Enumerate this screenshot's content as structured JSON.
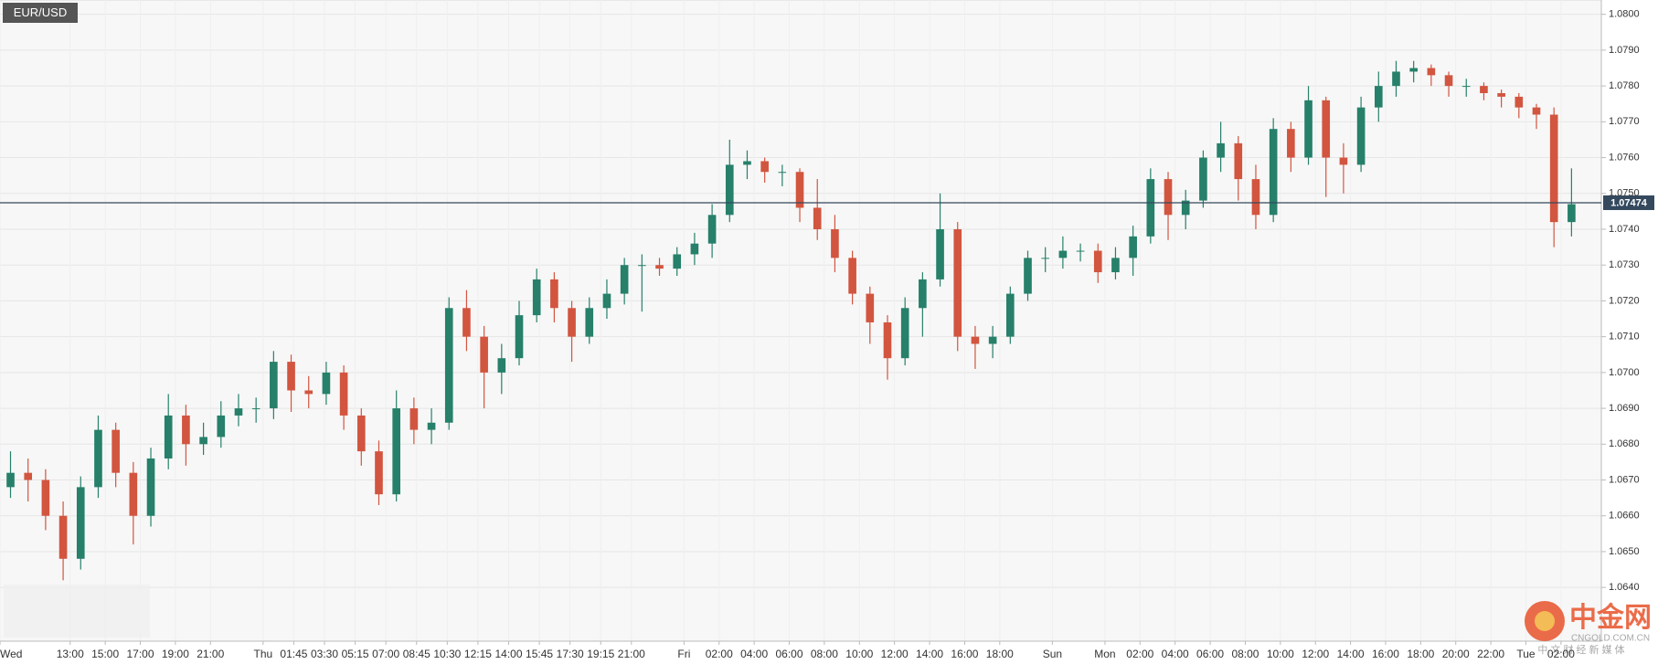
{
  "chart_data": {
    "type": "candlestick",
    "title": "EUR/USD",
    "x": [
      0,
      1,
      2,
      3,
      4,
      5,
      6,
      7,
      8,
      9,
      10,
      11,
      12,
      13,
      14,
      15,
      16,
      17,
      18,
      19,
      20,
      21,
      22,
      23,
      24,
      25,
      26,
      27,
      28,
      29,
      30,
      31,
      32,
      33,
      34,
      35,
      36,
      37,
      38,
      39,
      40,
      41,
      42,
      43,
      44,
      45,
      46,
      47,
      48,
      49,
      50,
      51,
      52,
      53,
      54,
      55,
      56,
      57,
      58,
      59,
      60,
      61,
      62,
      63,
      64,
      65,
      66,
      67,
      68,
      69,
      70,
      71,
      72,
      73,
      74,
      75,
      76,
      77,
      78,
      79,
      80,
      81,
      82,
      83,
      84,
      85,
      86,
      87,
      88,
      89
    ],
    "open": [
      1.0668,
      1.0672,
      1.067,
      1.066,
      1.0648,
      1.0668,
      1.0684,
      1.0672,
      1.066,
      1.0676,
      1.0688,
      1.068,
      1.0682,
      1.0688,
      1.069,
      1.069,
      1.0703,
      1.0695,
      1.0694,
      1.07,
      1.0688,
      1.0678,
      1.0666,
      1.069,
      1.0684,
      1.0686,
      1.0718,
      1.071,
      1.07,
      1.0704,
      1.0716,
      1.0726,
      1.0718,
      1.071,
      1.0718,
      1.0722,
      1.073,
      1.073,
      1.0729,
      1.0733,
      1.0736,
      1.0744,
      1.0758,
      1.0759,
      1.0756,
      1.0756,
      1.0746,
      1.074,
      1.0732,
      1.0722,
      1.0714,
      1.0704,
      1.0718,
      1.0726,
      1.074,
      1.071,
      1.0708,
      1.071,
      1.0722,
      1.0732,
      1.0732,
      1.0734,
      1.0734,
      1.0728,
      1.0732,
      1.0738,
      1.0754,
      1.0744,
      1.0748,
      1.076,
      1.0764,
      1.0754,
      1.0744,
      1.0768,
      1.076,
      1.0776,
      1.076,
      1.0758,
      1.0774,
      1.078,
      1.0784,
      1.0785,
      1.0783,
      1.078,
      1.078,
      1.0778,
      1.0777,
      1.0774,
      1.0772,
      1.0742
    ],
    "high": [
      1.0678,
      1.0676,
      1.0673,
      1.0664,
      1.0671,
      1.0688,
      1.0686,
      1.0675,
      1.0679,
      1.0694,
      1.0691,
      1.0686,
      1.0692,
      1.0694,
      1.0693,
      1.0706,
      1.0705,
      1.0699,
      1.0703,
      1.0702,
      1.069,
      1.0681,
      1.0695,
      1.0693,
      1.069,
      1.0721,
      1.0723,
      1.0713,
      1.0708,
      1.072,
      1.0729,
      1.0728,
      1.072,
      1.0721,
      1.0726,
      1.0732,
      1.0733,
      1.0732,
      1.0735,
      1.0739,
      1.0747,
      1.0765,
      1.0762,
      1.076,
      1.0758,
      1.0757,
      1.0754,
      1.0744,
      1.0734,
      1.0724,
      1.0716,
      1.0721,
      1.0728,
      1.075,
      1.0742,
      1.0713,
      1.0713,
      1.0724,
      1.0734,
      1.0735,
      1.0738,
      1.0736,
      1.0736,
      1.0735,
      1.0741,
      1.0757,
      1.0756,
      1.0751,
      1.0762,
      1.077,
      1.0766,
      1.0758,
      1.0771,
      1.077,
      1.078,
      1.0777,
      1.0764,
      1.0777,
      1.0784,
      1.0787,
      1.0787,
      1.0786,
      1.0784,
      1.0782,
      1.0781,
      1.0779,
      1.0778,
      1.0775,
      1.0774,
      1.0757
    ],
    "low": [
      1.0665,
      1.0664,
      1.0656,
      1.0642,
      1.0645,
      1.0665,
      1.0668,
      1.0652,
      1.0657,
      1.0673,
      1.0674,
      1.0677,
      1.0679,
      1.0685,
      1.0686,
      1.0687,
      1.0689,
      1.069,
      1.0691,
      1.0684,
      1.0674,
      1.0663,
      1.0664,
      1.068,
      1.068,
      1.0684,
      1.0706,
      1.069,
      1.0694,
      1.0702,
      1.0714,
      1.0714,
      1.0703,
      1.0708,
      1.0715,
      1.0719,
      1.0717,
      1.0727,
      1.0727,
      1.073,
      1.0732,
      1.0742,
      1.0754,
      1.0753,
      1.0752,
      1.0742,
      1.0737,
      1.0728,
      1.0719,
      1.0708,
      1.0698,
      1.0702,
      1.071,
      1.0724,
      1.0706,
      1.0701,
      1.0704,
      1.0708,
      1.072,
      1.0728,
      1.0729,
      1.0731,
      1.0725,
      1.0726,
      1.0727,
      1.0736,
      1.0737,
      1.074,
      1.0746,
      1.0756,
      1.0748,
      1.074,
      1.0742,
      1.0756,
      1.0758,
      1.0749,
      1.075,
      1.0756,
      1.077,
      1.0777,
      1.0781,
      1.078,
      1.0777,
      1.0777,
      1.0776,
      1.0774,
      1.0771,
      1.0768,
      1.0735,
      1.0738
    ],
    "close": [
      1.0672,
      1.067,
      1.066,
      1.0648,
      1.0668,
      1.0684,
      1.0672,
      1.066,
      1.0676,
      1.0688,
      1.068,
      1.0682,
      1.0688,
      1.069,
      1.069,
      1.0703,
      1.0695,
      1.0694,
      1.07,
      1.0688,
      1.0678,
      1.0666,
      1.069,
      1.0684,
      1.0686,
      1.0718,
      1.071,
      1.07,
      1.0704,
      1.0716,
      1.0726,
      1.0718,
      1.071,
      1.0718,
      1.0722,
      1.073,
      1.073,
      1.0729,
      1.0733,
      1.0736,
      1.0744,
      1.0758,
      1.0759,
      1.0756,
      1.0756,
      1.0746,
      1.074,
      1.0732,
      1.0722,
      1.0714,
      1.0704,
      1.0718,
      1.0726,
      1.074,
      1.071,
      1.0708,
      1.071,
      1.0722,
      1.0732,
      1.0732,
      1.0734,
      1.0734,
      1.0728,
      1.0732,
      1.0738,
      1.0754,
      1.0744,
      1.0748,
      1.076,
      1.0764,
      1.0754,
      1.0744,
      1.0768,
      1.076,
      1.0776,
      1.076,
      1.0758,
      1.0774,
      1.078,
      1.0784,
      1.0785,
      1.0783,
      1.078,
      1.078,
      1.0778,
      1.0777,
      1.0774,
      1.0772,
      1.0742,
      1.0747
    ],
    "up_color": "#26806a",
    "down_color": "#d2553f",
    "last_price": 1.07474,
    "last_price_color": "#34495e",
    "xlim": [
      -0.6,
      90.7
    ],
    "xticks": [
      {
        "value": -0.6,
        "label": "Wed"
      },
      {
        "value": 3.4,
        "label": "13:00"
      },
      {
        "value": 5.4,
        "label": "15:00"
      },
      {
        "value": 7.4,
        "label": "17:00"
      },
      {
        "value": 9.4,
        "label": "19:00"
      },
      {
        "value": 11.4,
        "label": "21:00"
      },
      {
        "value": 14.4,
        "label": "Thu"
      },
      {
        "value": 16.15,
        "label": "01:45"
      },
      {
        "value": 17.9,
        "label": "03:30"
      },
      {
        "value": 19.65,
        "label": "05:15"
      },
      {
        "value": 21.4,
        "label": "07:00"
      },
      {
        "value": 23.15,
        "label": "08:45"
      },
      {
        "value": 24.9,
        "label": "10:30"
      },
      {
        "value": 26.65,
        "label": "12:15"
      },
      {
        "value": 28.4,
        "label": "14:00"
      },
      {
        "value": 30.15,
        "label": "15:45"
      },
      {
        "value": 31.9,
        "label": "17:30"
      },
      {
        "value": 33.65,
        "label": "19:15"
      },
      {
        "value": 35.4,
        "label": "21:00"
      },
      {
        "value": 38.4,
        "label": "Fri"
      },
      {
        "value": 40.4,
        "label": "02:00"
      },
      {
        "value": 42.4,
        "label": "04:00"
      },
      {
        "value": 44.4,
        "label": "06:00"
      },
      {
        "value": 46.4,
        "label": "08:00"
      },
      {
        "value": 48.4,
        "label": "10:00"
      },
      {
        "value": 50.4,
        "label": "12:00"
      },
      {
        "value": 52.4,
        "label": "14:00"
      },
      {
        "value": 54.4,
        "label": "16:00"
      },
      {
        "value": 56.4,
        "label": "18:00"
      },
      {
        "value": 59.4,
        "label": "Sun"
      },
      {
        "value": 62.4,
        "label": "Mon"
      },
      {
        "value": 64.4,
        "label": "02:00"
      },
      {
        "value": 66.4,
        "label": "04:00"
      },
      {
        "value": 68.4,
        "label": "06:00"
      },
      {
        "value": 70.4,
        "label": "08:00"
      },
      {
        "value": 72.4,
        "label": "10:00"
      },
      {
        "value": 74.4,
        "label": "12:00"
      },
      {
        "value": 76.4,
        "label": "14:00"
      },
      {
        "value": 78.4,
        "label": "16:00"
      },
      {
        "value": 80.4,
        "label": "18:00"
      },
      {
        "value": 82.4,
        "label": "20:00"
      },
      {
        "value": 84.4,
        "label": "22:00"
      },
      {
        "value": 86.4,
        "label": "Tue"
      },
      {
        "value": 88.4,
        "label": "02:00"
      }
    ],
    "ylim": [
      1.0625,
      1.0804
    ],
    "yticks": [
      {
        "value": 1.064,
        "label": "1.0640"
      },
      {
        "value": 1.065,
        "label": "1.0650"
      },
      {
        "value": 1.066,
        "label": "1.0660"
      },
      {
        "value": 1.067,
        "label": "1.0670"
      },
      {
        "value": 1.068,
        "label": "1.0680"
      },
      {
        "value": 1.069,
        "label": "1.0690"
      },
      {
        "value": 1.07,
        "label": "1.0700"
      },
      {
        "value": 1.071,
        "label": "1.0710"
      },
      {
        "value": 1.072,
        "label": "1.0720"
      },
      {
        "value": 1.073,
        "label": "1.0730"
      },
      {
        "value": 1.074,
        "label": "1.0740"
      },
      {
        "value": 1.075,
        "label": "1.0750"
      },
      {
        "value": 1.076,
        "label": "1.0760"
      },
      {
        "value": 1.077,
        "label": "1.0770"
      },
      {
        "value": 1.078,
        "label": "1.0780"
      },
      {
        "value": 1.079,
        "label": "1.0790"
      },
      {
        "value": 1.08,
        "label": "1.0800"
      }
    ],
    "grid": true,
    "watermark": {
      "logo": "中金网",
      "site": "CNGOLD.COM.CN",
      "slogan": "中 文 财 经 新 媒 体"
    }
  }
}
